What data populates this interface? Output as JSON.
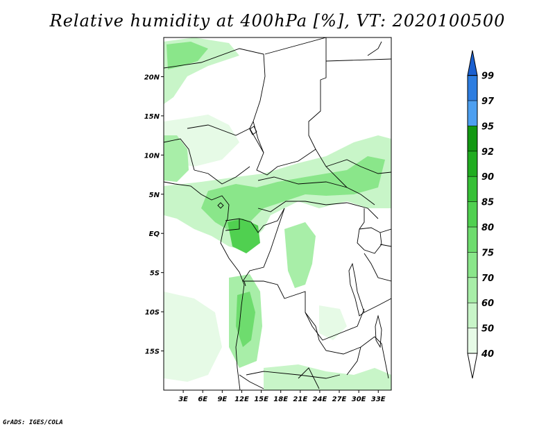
{
  "title": "Relative humidity at 400hPa [%], VT: 2020100500",
  "credit": "GrADS: IGES/COLA",
  "map": {
    "lon_range": [
      0,
      35
    ],
    "lat_range": [
      -20,
      25
    ],
    "x_ticks": [
      {
        "lon": 3,
        "label": "3E"
      },
      {
        "lon": 6,
        "label": "6E"
      },
      {
        "lon": 9,
        "label": "9E"
      },
      {
        "lon": 12,
        "label": "12E"
      },
      {
        "lon": 15,
        "label": "15E"
      },
      {
        "lon": 18,
        "label": "18E"
      },
      {
        "lon": 21,
        "label": "21E"
      },
      {
        "lon": 24,
        "label": "24E"
      },
      {
        "lon": 27,
        "label": "27E"
      },
      {
        "lon": 30,
        "label": "30E"
      },
      {
        "lon": 33,
        "label": "33E"
      }
    ],
    "y_ticks": [
      {
        "lat": 20,
        "label": "20N"
      },
      {
        "lat": 15,
        "label": "15N"
      },
      {
        "lat": 10,
        "label": "10N"
      },
      {
        "lat": 5,
        "label": "5N"
      },
      {
        "lat": 0,
        "label": "EQ"
      },
      {
        "lat": -5,
        "label": "5S"
      },
      {
        "lat": -10,
        "label": "10S"
      },
      {
        "lat": -15,
        "label": "15S"
      }
    ]
  },
  "colorbar": {
    "levels": [
      "40",
      "50",
      "60",
      "70",
      "75",
      "80",
      "85",
      "90",
      "92",
      "95",
      "97",
      "99"
    ],
    "colors": [
      "#e6fae6",
      "#c8f5c8",
      "#a8eea8",
      "#8ae68a",
      "#6edc6e",
      "#50d050",
      "#36c036",
      "#20ac20",
      "#129812",
      "#4d9ff0",
      "#2d7de0",
      "#1a5fcf"
    ],
    "under_color": "#ffffff",
    "over_color": "#1a5fcf"
  }
}
